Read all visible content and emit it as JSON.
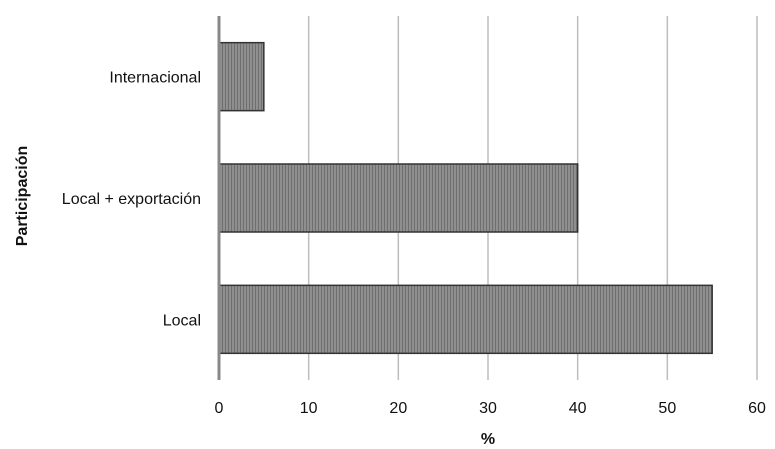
{
  "chart_data": {
    "type": "bar",
    "orientation": "horizontal",
    "categories": [
      "Internacional",
      "Local + exportación",
      "Local"
    ],
    "values": [
      5,
      40,
      55
    ],
    "title": "",
    "xlabel": "%",
    "ylabel": "Participación",
    "xlim": [
      0,
      60
    ],
    "xticks": [
      "0",
      "10",
      "20",
      "30",
      "40",
      "50",
      "60"
    ],
    "grid": "vertical",
    "legend": "none",
    "bar_color": "#8a8a8a",
    "bar_edge_color": "#333333",
    "grid_color": "#bdbdbd",
    "axis_color": "#888888"
  }
}
